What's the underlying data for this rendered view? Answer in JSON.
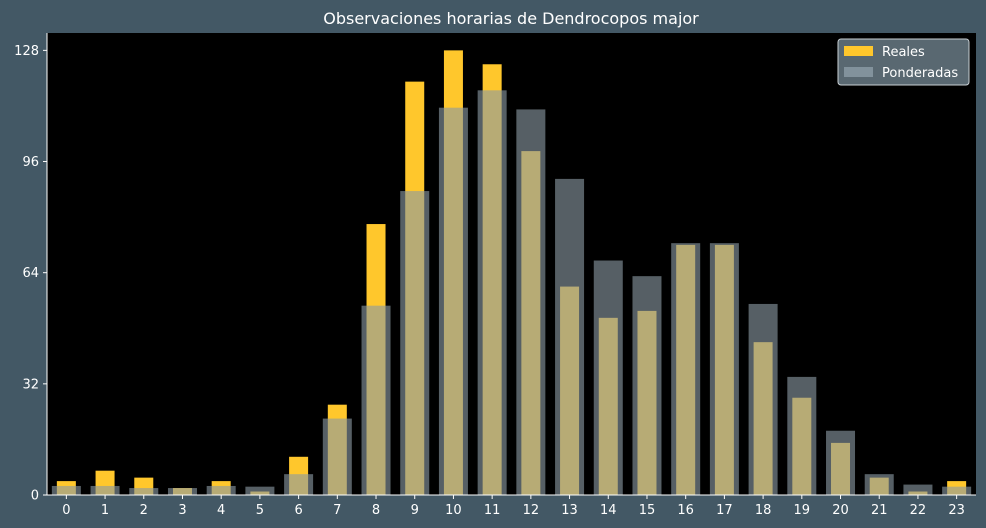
{
  "chart_data": {
    "type": "bar",
    "title": "Observaciones horarias de Dendrocopos major",
    "xlabel": "",
    "ylabel": "",
    "categories": [
      "0",
      "1",
      "2",
      "3",
      "4",
      "5",
      "6",
      "7",
      "8",
      "9",
      "10",
      "11",
      "12",
      "13",
      "14",
      "15",
      "16",
      "17",
      "18",
      "19",
      "20",
      "21",
      "22",
      "23"
    ],
    "series": [
      {
        "name": "Reales",
        "color": "#ffc72c",
        "values": [
          4,
          7,
          5,
          2,
          4,
          1,
          11,
          26,
          78,
          119,
          128,
          124,
          99,
          60,
          51,
          53,
          72,
          72,
          44,
          28,
          15,
          5,
          1,
          4
        ]
      },
      {
        "name": "Ponderadas",
        "color": "#8a9aa3",
        "values": [
          2.6,
          2.6,
          2.0,
          2.0,
          2.6,
          2.4,
          6,
          22,
          54.5,
          87.5,
          111.5,
          116.5,
          111,
          91,
          67.5,
          63,
          72.5,
          72.5,
          55,
          34,
          18.5,
          6,
          3,
          2.4
        ]
      }
    ],
    "ylim": [
      0,
      133
    ],
    "yticks": [
      0,
      32,
      64,
      96,
      128
    ],
    "grid": false,
    "legend_position": "top-right",
    "background": "#000000",
    "figure_background": "#435865"
  }
}
